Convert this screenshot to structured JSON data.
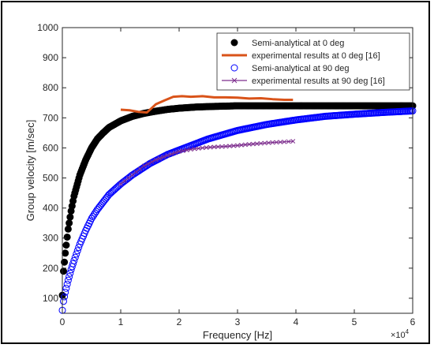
{
  "chart_data": {
    "type": "scatter",
    "title": "",
    "xlabel": "Frequency [Hz]",
    "ylabel": "Group velocity [m/sec]",
    "x_exponent_label": "×10",
    "x_exponent_power": "4",
    "xlim": [
      0,
      60000
    ],
    "ylim": [
      50,
      1000
    ],
    "grid": false,
    "legend_position": "top-right",
    "x_ticks": [
      0,
      10000,
      20000,
      30000,
      40000,
      50000,
      60000
    ],
    "x_tick_labels": [
      "0",
      "1",
      "2",
      "3",
      "4",
      "5",
      "6"
    ],
    "y_ticks": [
      100,
      200,
      300,
      400,
      500,
      600,
      700,
      800,
      900,
      1000
    ],
    "y_tick_labels": [
      "100",
      "200",
      "300",
      "400",
      "500",
      "600",
      "700",
      "800",
      "900",
      "1000"
    ],
    "series": [
      {
        "name": "Semi-analytical at 0 deg",
        "style": "filled-marker",
        "color": "#000000",
        "x": [
          0,
          200,
          500,
          1000,
          1500,
          2000,
          3000,
          4000,
          5000,
          6000,
          7000,
          8000,
          10000,
          12000,
          14000,
          16000,
          18000,
          20000,
          23000,
          26000,
          30000,
          35000,
          40000,
          45000,
          50000,
          55000,
          60000
        ],
        "y": [
          110,
          190,
          250,
          330,
          390,
          440,
          510,
          560,
          600,
          630,
          650,
          668,
          690,
          705,
          715,
          722,
          728,
          732,
          736,
          738,
          740,
          740,
          740,
          740,
          740,
          740,
          740
        ]
      },
      {
        "name": "experimental results at 0 deg [16]",
        "style": "thick-line",
        "color": "#d95319",
        "x": [
          10000,
          11500,
          13000,
          14500,
          16000,
          17500,
          19000,
          20500,
          22000,
          24000,
          26000,
          28000,
          30000,
          32000,
          34000,
          36000,
          38000,
          39500
        ],
        "y": [
          727,
          725,
          720,
          718,
          745,
          758,
          770,
          772,
          770,
          772,
          768,
          768,
          767,
          764,
          765,
          762,
          760,
          760
        ]
      },
      {
        "name": "Semi-analytical at 90 deg",
        "style": "open-marker",
        "color": "#0000ff",
        "x": [
          0,
          200,
          500,
          1000,
          1500,
          2000,
          3000,
          4000,
          5000,
          6000,
          8000,
          10000,
          12000,
          15000,
          18000,
          20000,
          25000,
          30000,
          35000,
          40000,
          45000,
          50000,
          55000,
          60000
        ],
        "y": [
          60,
          90,
          120,
          160,
          195,
          225,
          280,
          325,
          365,
          395,
          445,
          480,
          510,
          548,
          578,
          593,
          630,
          658,
          678,
          693,
          705,
          712,
          718,
          723
        ]
      },
      {
        "name": "experimental results at 90 deg [16]",
        "style": "line-x-marker",
        "color": "#7e2f8e",
        "x": [
          10000,
          12000,
          14000,
          16000,
          18000,
          20000,
          22000,
          24000,
          26000,
          28000,
          30000,
          32000,
          34000,
          36000,
          38000,
          39500
        ],
        "y": [
          480,
          510,
          540,
          560,
          575,
          588,
          595,
          600,
          603,
          605,
          608,
          612,
          615,
          618,
          620,
          622
        ]
      }
    ]
  },
  "legend": {
    "entries": [
      "Semi-analytical at 0 deg",
      "experimental results at 0 deg [16]",
      "Semi-analytical at 90 deg",
      "experimental results at 90 deg [16]"
    ]
  }
}
